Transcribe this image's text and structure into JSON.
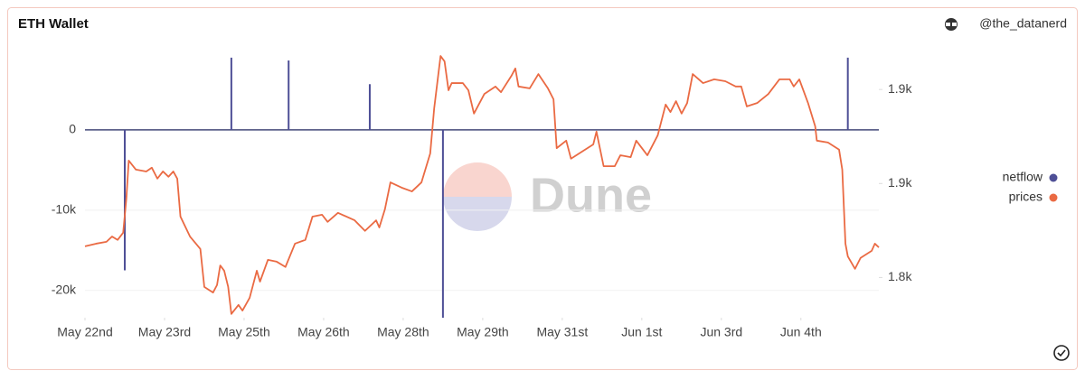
{
  "header": {
    "title": "ETH Wallet",
    "author": "@the_datanerd"
  },
  "watermark": "Dune",
  "chart_data": {
    "type": "combo",
    "xlim": [
      0,
      9.98
    ],
    "xticks": [
      {
        "value": 0,
        "label": "May 22nd"
      },
      {
        "value": 1,
        "label": "May 23rd"
      },
      {
        "value": 2,
        "label": "May 25th"
      },
      {
        "value": 3,
        "label": "May 26th"
      },
      {
        "value": 4,
        "label": "May 28th"
      },
      {
        "value": 5,
        "label": "May 29th"
      },
      {
        "value": 6,
        "label": "May 31st"
      },
      {
        "value": 7,
        "label": "Jun 1st"
      },
      {
        "value": 8,
        "label": "Jun 3rd"
      },
      {
        "value": 9,
        "label": "Jun 4th"
      }
    ],
    "ylim": [
      -23400,
      9440
    ],
    "yticks": [
      0,
      {
        "value": -10000,
        "label": "-10k"
      },
      {
        "value": -20000,
        "label": "-20k"
      }
    ],
    "y2lim": [
      1814.3,
      1884.4
    ],
    "y2ticks": [
      {
        "value": 1875,
        "label": "1.9k"
      },
      {
        "value": 1850,
        "label": "1.9k"
      },
      {
        "value": 1825,
        "label": "1.8k"
      }
    ],
    "grid": true,
    "series": [
      {
        "name": "netflow",
        "type": "bar",
        "color": "#4e4f96",
        "x": [
          0.5,
          1.84,
          2.56,
          3.58,
          4.5,
          9.59
        ],
        "values": [
          -17500,
          9000,
          8650,
          5700,
          -23400,
          9000
        ]
      },
      {
        "name": "prices",
        "type": "line",
        "axis": "y2",
        "color": "#ea6a43",
        "x": [
          0.0,
          0.14,
          0.27,
          0.34,
          0.41,
          0.48,
          0.52,
          0.55,
          0.64,
          0.77,
          0.84,
          0.91,
          0.98,
          1.05,
          1.11,
          1.16,
          1.2,
          1.32,
          1.45,
          1.5,
          1.61,
          1.66,
          1.7,
          1.75,
          1.8,
          1.84,
          1.93,
          1.98,
          2.07,
          2.16,
          2.2,
          2.3,
          2.41,
          2.52,
          2.64,
          2.77,
          2.86,
          2.98,
          3.05,
          3.18,
          3.39,
          3.52,
          3.66,
          3.7,
          3.77,
          3.84,
          3.98,
          4.11,
          4.23,
          4.34,
          4.39,
          4.47,
          4.52,
          4.57,
          4.61,
          4.75,
          4.82,
          4.89,
          5.02,
          5.16,
          5.23,
          5.36,
          5.41,
          5.45,
          5.59,
          5.7,
          5.82,
          5.89,
          5.93,
          6.05,
          6.11,
          6.25,
          6.39,
          6.43,
          6.52,
          6.66,
          6.73,
          6.86,
          6.93,
          7.07,
          7.2,
          7.3,
          7.36,
          7.43,
          7.5,
          7.57,
          7.64,
          7.77,
          7.91,
          8.05,
          8.18,
          8.25,
          8.32,
          8.45,
          8.59,
          8.73,
          8.86,
          8.91,
          8.98,
          9.09,
          9.18,
          9.2,
          9.34,
          9.48,
          9.52,
          9.56,
          9.59,
          9.68,
          9.75,
          9.89,
          9.93,
          9.98
        ],
        "values": [
          1833.3,
          1834.0,
          1834.5,
          1835.9,
          1835.0,
          1836.9,
          1846.0,
          1856.1,
          1853.7,
          1853.2,
          1854.2,
          1851.3,
          1853.2,
          1851.8,
          1853.2,
          1851.3,
          1841.2,
          1835.9,
          1832.6,
          1822.5,
          1821.0,
          1823.0,
          1828.2,
          1826.8,
          1822.5,
          1815.3,
          1817.7,
          1816.2,
          1819.6,
          1826.8,
          1823.9,
          1829.7,
          1829.2,
          1827.8,
          1834.0,
          1835.0,
          1841.2,
          1841.7,
          1839.8,
          1842.2,
          1840.2,
          1837.4,
          1840.2,
          1838.3,
          1843.1,
          1850.3,
          1848.9,
          1847.9,
          1850.3,
          1858.0,
          1870.0,
          1883.9,
          1882.5,
          1874.8,
          1876.7,
          1876.7,
          1874.8,
          1868.6,
          1873.8,
          1875.8,
          1874.3,
          1878.6,
          1880.6,
          1875.8,
          1875.3,
          1879.1,
          1875.3,
          1872.4,
          1859.4,
          1861.4,
          1856.6,
          1858.5,
          1860.4,
          1863.8,
          1854.6,
          1854.6,
          1857.5,
          1857.0,
          1861.4,
          1857.5,
          1862.8,
          1871.0,
          1869.0,
          1871.9,
          1868.6,
          1871.4,
          1879.1,
          1876.7,
          1877.7,
          1877.2,
          1875.8,
          1875.8,
          1870.5,
          1871.4,
          1873.8,
          1877.7,
          1877.7,
          1875.8,
          1877.7,
          1871.4,
          1865.2,
          1861.4,
          1860.9,
          1859.0,
          1853.7,
          1834.0,
          1830.6,
          1827.3,
          1830.2,
          1832.1,
          1834.0,
          1833.0
        ]
      }
    ]
  }
}
